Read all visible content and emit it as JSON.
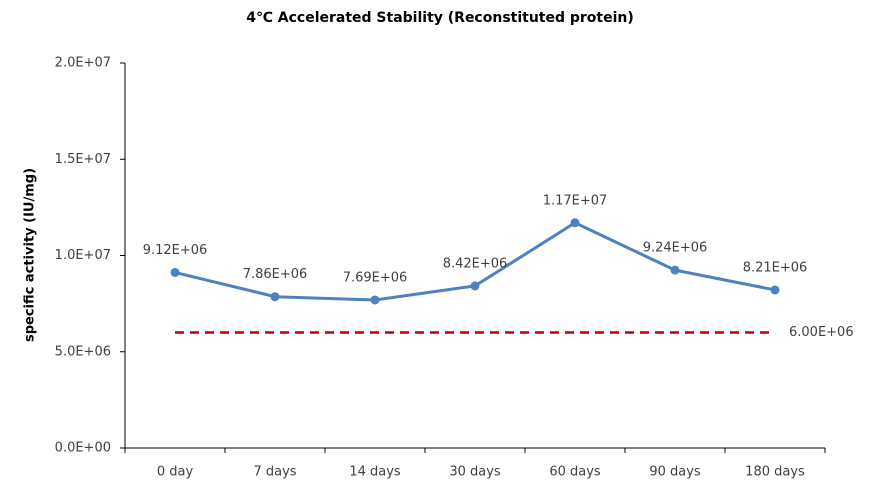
{
  "chart_data": {
    "type": "line",
    "title": "4℃ Accelerated  Stability (Reconstituted protein)",
    "y_label": "specific activity (IU/mg)",
    "categories": [
      "0 day",
      "7 days",
      "14 days",
      "30 days",
      "60 days",
      "90 days",
      "180 days"
    ],
    "values": [
      9120000,
      7860000,
      7690000,
      8420000,
      11700000,
      9240000,
      8210000
    ],
    "value_labels": [
      "9.12E+06",
      "7.86E+06",
      "7.69E+06",
      "8.42E+06",
      "1.17E+07",
      "9.24E+06",
      "8.21E+06"
    ],
    "color": "#4f81bd",
    "ylim": [
      0,
      20000000
    ],
    "yticks": [
      {
        "value": 0,
        "label": "0.0E+00"
      },
      {
        "value": 5000000,
        "label": "5.0E+06"
      },
      {
        "value": 10000000,
        "label": "1.0E+07"
      },
      {
        "value": 15000000,
        "label": "1.5E+07"
      },
      {
        "value": 20000000,
        "label": "2.0E+07"
      }
    ],
    "reference_line": {
      "value": 6000000,
      "label": "6.00E+06",
      "color": "#c00000"
    }
  }
}
